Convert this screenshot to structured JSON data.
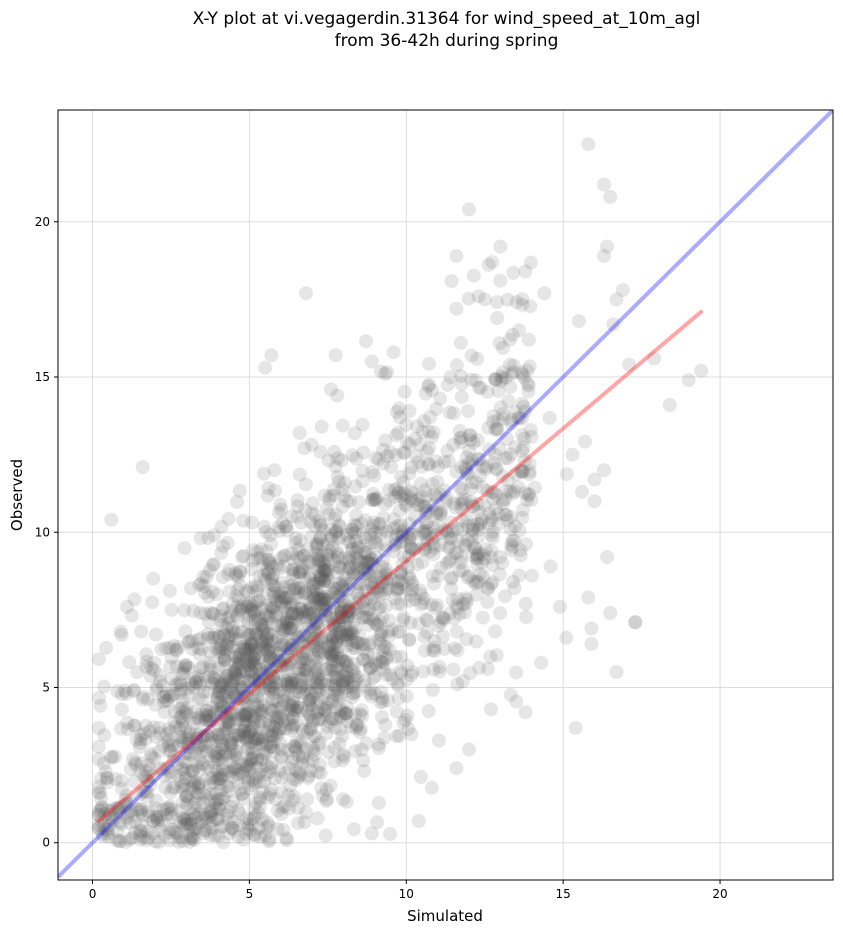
{
  "chart_data": {
    "type": "scatter",
    "title_line1": "X-Y plot at vi.vegagerdin.31364 for wind_speed_at_10m_agl",
    "title_line2": "from 36-42h during spring",
    "xlabel": "Simulated",
    "ylabel": "Observed",
    "xlim": [
      -1.1,
      23.6
    ],
    "ylim": [
      -1.2,
      23.6
    ],
    "xticks": [
      0,
      5,
      10,
      15,
      20
    ],
    "yticks": [
      0,
      5,
      10,
      15,
      20
    ],
    "grid": true,
    "colors": {
      "points": "#555555",
      "identity_line": "#0000ff",
      "fit_line": "#ff0000",
      "grid": "#dddddd"
    },
    "identity_line": {
      "x": [
        -1.1,
        23.6
      ],
      "y": [
        -1.1,
        23.6
      ]
    },
    "fit_line": {
      "x": [
        0.2,
        19.4
      ],
      "y": [
        0.7,
        17.1
      ]
    },
    "outlier_points": {
      "x": [
        15.8,
        16.3,
        16.5,
        16.4,
        16.3,
        16.9,
        16.7,
        16.6,
        17.3,
        17.9,
        18.4,
        19.0,
        19.4,
        12.0,
        11.6,
        11.6,
        13.0,
        12.3,
        6.8,
        5.7,
        5.5,
        0.6,
        1.6,
        15.4,
        16.7,
        17.3,
        15.9,
        15.9,
        15.1,
        14.3,
        13.8,
        12.7,
        12.0,
        11.6,
        8.9,
        10.4,
        11.8,
        12.6,
        14.0,
        14.6,
        14.9,
        15.8,
        16.0,
        16.0,
        13.0,
        12.5,
        14.4,
        13.8,
        13.3,
        15.5,
        12.9,
        15.3,
        15.6,
        16.3,
        16.4,
        16.5,
        17.1,
        10.7,
        9.6,
        8.9,
        7.6,
        6.6,
        5.8,
        7.3,
        7.8,
        1.1,
        0.9
      ],
      "y": [
        22.5,
        21.2,
        20.8,
        19.2,
        18.9,
        17.8,
        17.5,
        16.7,
        7.1,
        15.6,
        14.1,
        14.9,
        15.2,
        20.4,
        18.9,
        17.2,
        19.2,
        17.6,
        17.7,
        15.7,
        15.3,
        10.4,
        12.1,
        3.7,
        5.5,
        7.1,
        6.9,
        6.4,
        6.6,
        5.8,
        4.2,
        4.3,
        3.0,
        2.4,
        0.3,
        0.7,
        5.2,
        5.6,
        8.6,
        8.9,
        7.6,
        7.9,
        11.0,
        11.7,
        18.1,
        17.5,
        17.7,
        18.4,
        16.2,
        16.8,
        16.9,
        12.5,
        11.3,
        12.0,
        9.2,
        7.4,
        15.4,
        14.7,
        15.8,
        15.5,
        14.6,
        13.2,
        12.0,
        13.4,
        14.4,
        7.6,
        6.8
      ]
    },
    "bulk_points": {
      "n": 2600,
      "x_range": [
        0.2,
        19.4
      ],
      "approx_fit": "observed ≈ 0.86·simulated + 0.5",
      "residual_sd": 2.6
    }
  }
}
